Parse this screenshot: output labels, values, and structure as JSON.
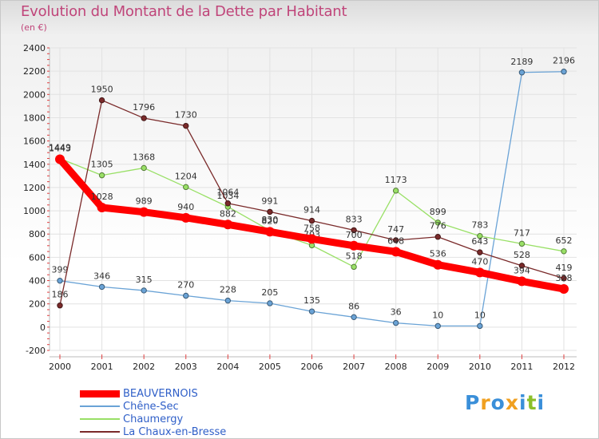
{
  "header": {
    "title": "Evolution du Montant de la Dette par Habitant",
    "subtitle": "(en €)"
  },
  "logo": {
    "text": "Proxiti",
    "colors": [
      "#3a8fd9",
      "#f0a020",
      "#3a8fd9",
      "#f0a020",
      "#3a8fd9",
      "#8bbf2a",
      "#3a8fd9"
    ]
  },
  "chart_data": {
    "type": "line",
    "x": [
      "2000",
      "2001",
      "2002",
      "2003",
      "2004",
      "2005",
      "2006",
      "2007",
      "2008",
      "2009",
      "2010",
      "2011",
      "2012"
    ],
    "ylim": [
      -200,
      2400
    ],
    "yticks": [
      "-200",
      "0",
      "200",
      "400",
      "600",
      "800",
      "1000",
      "1200",
      "1400",
      "1600",
      "1800",
      "2000",
      "2200",
      "2400"
    ],
    "grid": true,
    "legend": "bottom-left",
    "series": [
      {
        "name": "BEAUVERNOIS",
        "color": "#ff0000",
        "width": 9,
        "values": [
          1443,
          1028,
          989,
          940,
          882,
          820,
          758,
          700,
          648,
          536,
          470,
          394,
          328
        ]
      },
      {
        "name": "Chêne-Sec",
        "color": "#6aa3d6",
        "width": 1.3,
        "values": [
          399,
          346,
          315,
          270,
          228,
          205,
          135,
          86,
          36,
          10,
          10,
          2189,
          2196
        ]
      },
      {
        "name": "Chaumergy",
        "color": "#99e066",
        "width": 1.3,
        "values": [
          1449,
          1305,
          1368,
          1204,
          1034,
          830,
          703,
          518,
          1173,
          899,
          783,
          717,
          652
        ]
      },
      {
        "name": "La Chaux-en-Bresse",
        "color": "#7a2a2a",
        "width": 1.3,
        "values": [
          186,
          1950,
          1796,
          1730,
          1064,
          991,
          914,
          833,
          747,
          776,
          643,
          528,
          419
        ]
      }
    ]
  }
}
